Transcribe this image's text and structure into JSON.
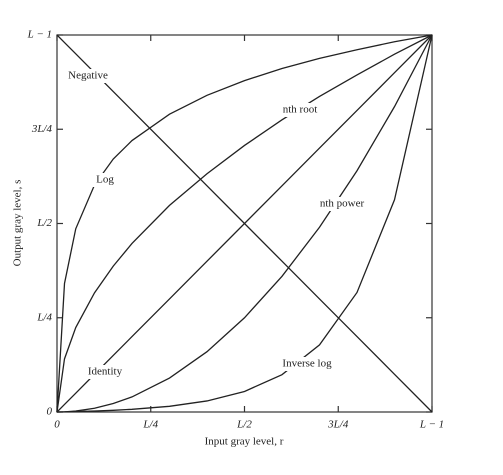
{
  "chart_data": {
    "type": "line",
    "xlabel": "Input gray level, r",
    "ylabel": "Output gray level, s",
    "x": [
      0,
      0.02,
      0.05,
      0.1,
      0.15,
      0.2,
      0.3,
      0.4,
      0.5,
      0.6,
      0.7,
      0.8,
      0.9,
      1
    ],
    "xlim": [
      0,
      1
    ],
    "ylim": [
      0,
      1
    ],
    "xticks": [
      {
        "value": 0,
        "label": "0"
      },
      {
        "value": 0.25,
        "label": "L/4"
      },
      {
        "value": 0.5,
        "label": "L/2"
      },
      {
        "value": 0.75,
        "label": "3L/4"
      },
      {
        "value": 1,
        "label": "L − 1"
      }
    ],
    "yticks": [
      {
        "value": 0,
        "label": "0"
      },
      {
        "value": 0.25,
        "label": "L/4"
      },
      {
        "value": 0.5,
        "label": "L/2"
      },
      {
        "value": 0.75,
        "label": "3L/4"
      },
      {
        "value": 1,
        "label": "L − 1"
      }
    ],
    "series": [
      {
        "name": "Negative",
        "color": "#222222",
        "values": [
          1,
          0.98,
          0.95,
          0.9,
          0.85,
          0.8,
          0.7,
          0.6,
          0.5,
          0.4,
          0.3,
          0.2,
          0.1,
          0
        ]
      },
      {
        "name": "Log",
        "color": "#222222",
        "values": [
          0,
          0.341,
          0.486,
          0.602,
          0.671,
          0.72,
          0.79,
          0.84,
          0.879,
          0.911,
          0.938,
          0.961,
          0.982,
          1
        ]
      },
      {
        "name": "nth root",
        "color": "#222222",
        "values": [
          0,
          0.141,
          0.224,
          0.316,
          0.387,
          0.447,
          0.548,
          0.632,
          0.707,
          0.775,
          0.837,
          0.894,
          0.949,
          1
        ]
      },
      {
        "name": "Identity",
        "color": "#222222",
        "values": [
          0,
          0.02,
          0.05,
          0.1,
          0.15,
          0.2,
          0.3,
          0.4,
          0.5,
          0.6,
          0.7,
          0.8,
          0.9,
          1
        ]
      },
      {
        "name": "nth power",
        "color": "#222222",
        "values": [
          0,
          0.0004,
          0.0025,
          0.01,
          0.0225,
          0.04,
          0.09,
          0.16,
          0.25,
          0.36,
          0.49,
          0.64,
          0.81,
          1
        ]
      },
      {
        "name": "Inverse log",
        "color": "#222222",
        "values": [
          0,
          0.0004,
          0.0011,
          0.0026,
          0.0045,
          0.0071,
          0.0151,
          0.0293,
          0.0545,
          0.099,
          0.178,
          0.317,
          0.563,
          1
        ]
      }
    ]
  }
}
